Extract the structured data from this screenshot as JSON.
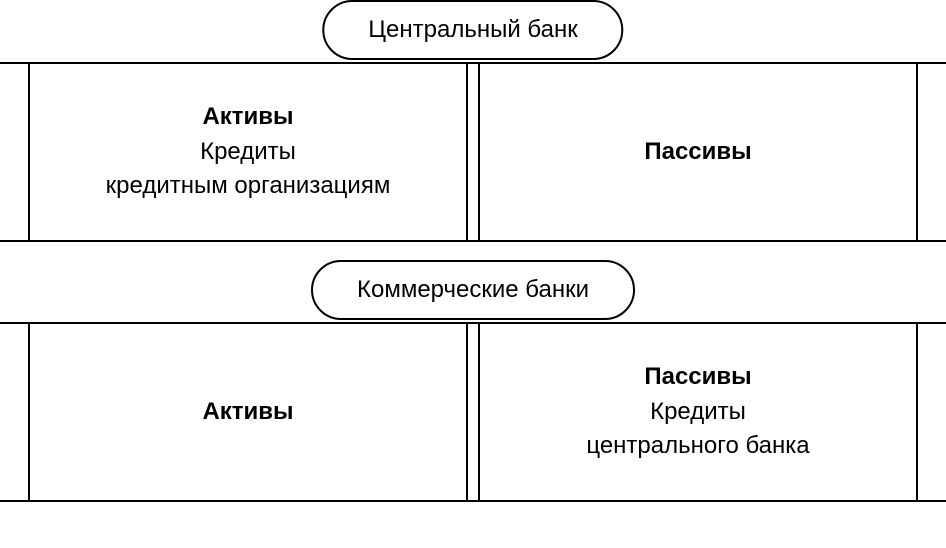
{
  "diagram": {
    "type": "infographic",
    "background_color": "#ffffff",
    "border_color": "#000000",
    "border_width": 2,
    "font_family": "Arial",
    "title_fontsize": 24,
    "sub_fontsize": 24,
    "pill_border_radius": 999,
    "margin_col_width": 30,
    "divider_gap_width": 14,
    "sections": [
      {
        "header": "Центральный банк",
        "left": {
          "title": "Активы",
          "subtitle1": "Кредиты",
          "subtitle2": "кредитным организациям"
        },
        "right": {
          "title": "Пассивы",
          "subtitle1": "",
          "subtitle2": ""
        }
      },
      {
        "header": "Коммерческие банки",
        "left": {
          "title": "Активы",
          "subtitle1": "",
          "subtitle2": ""
        },
        "right": {
          "title": "Пассивы",
          "subtitle1": "Кредиты",
          "subtitle2": "центрального банка"
        }
      }
    ]
  }
}
